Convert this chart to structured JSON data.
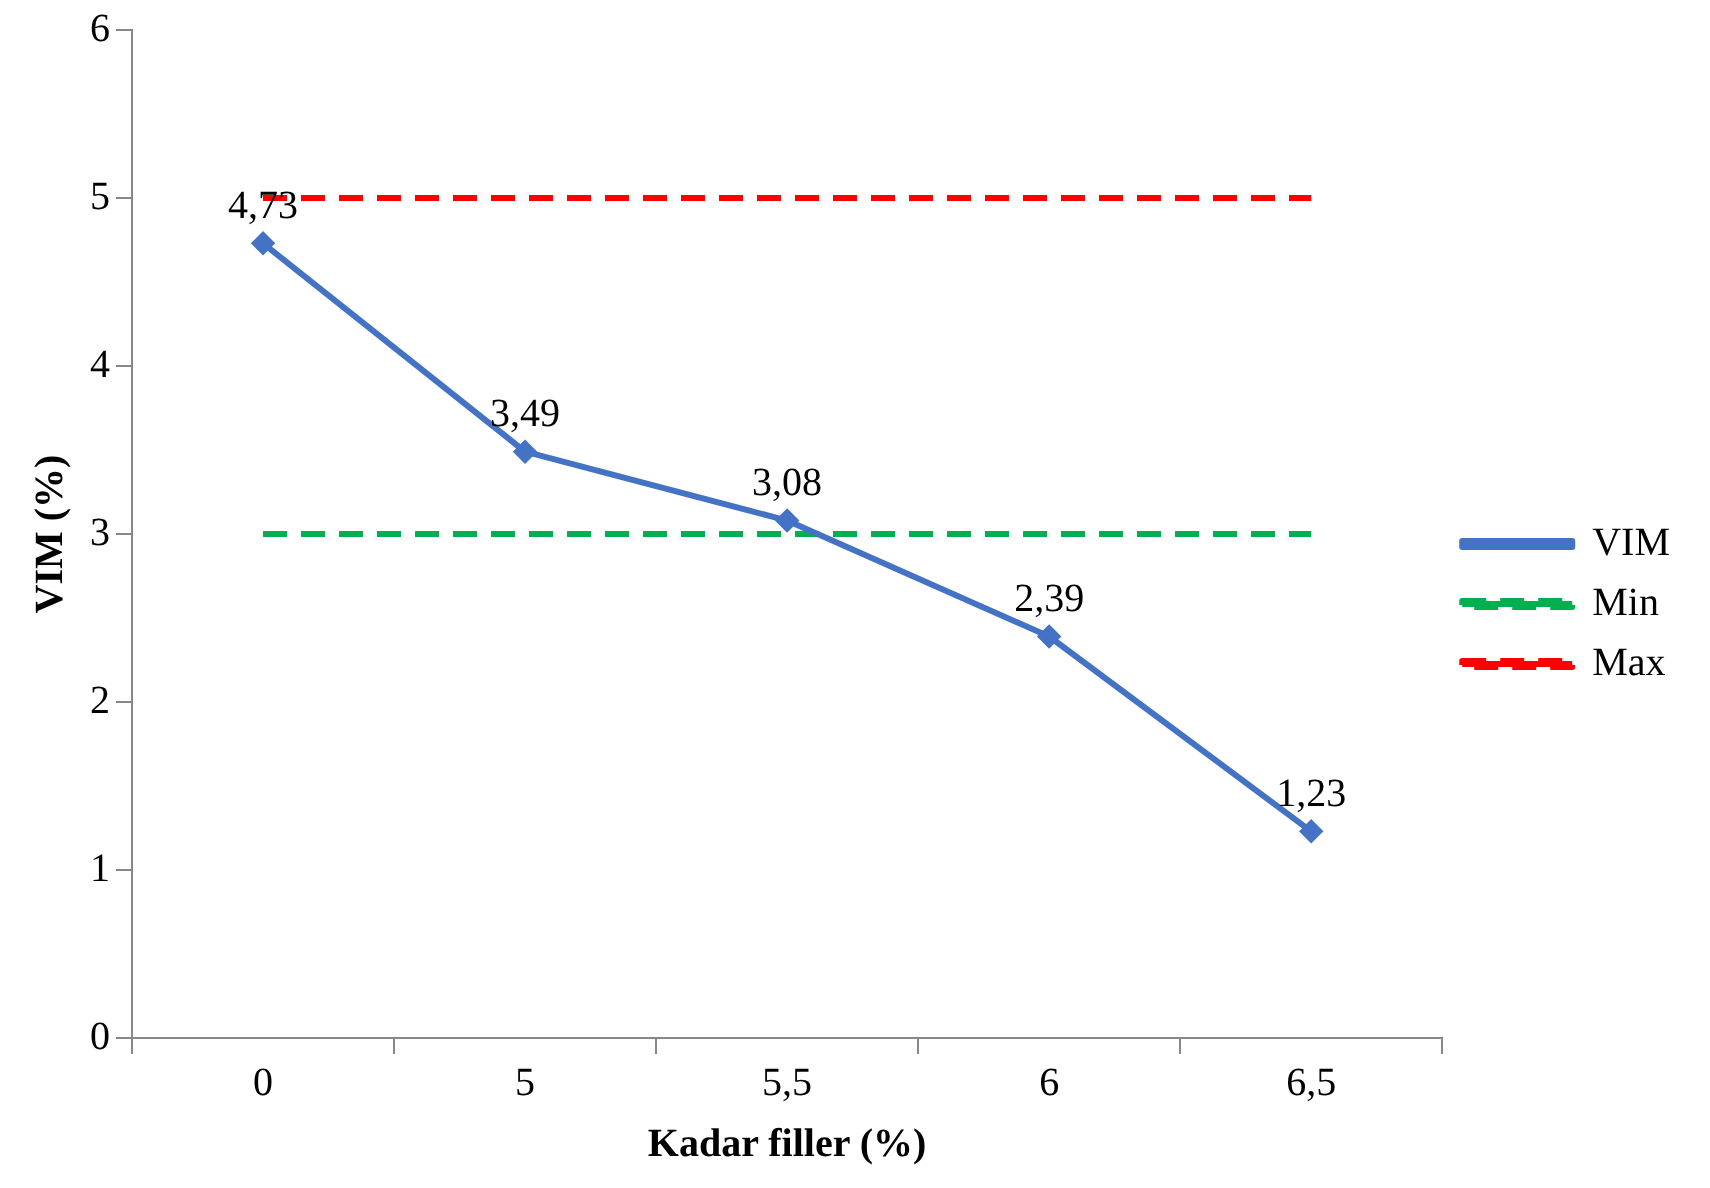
{
  "chart_data": {
    "type": "line",
    "xlabel": "Kadar filler (%)",
    "ylabel": "VIM (%)",
    "categories": [
      "0",
      "5",
      "5,5",
      "6",
      "6,5"
    ],
    "ylim": [
      0,
      6
    ],
    "yticks": [
      0,
      1,
      2,
      3,
      4,
      5,
      6
    ],
    "grid": false,
    "legend": "right",
    "series": [
      {
        "name": "VIM",
        "color": "#4472c4",
        "values": [
          4.73,
          3.49,
          3.08,
          2.39,
          1.23
        ],
        "value_labels": [
          "4,73",
          "3,49",
          "3,08",
          "2,39",
          "1,23"
        ],
        "marker": "diamond",
        "line_style": "solid"
      },
      {
        "name": "Min",
        "color": "#00b050",
        "values": [
          3,
          3,
          3,
          3,
          3
        ],
        "marker": "none",
        "line_style": "dashed"
      },
      {
        "name": "Max",
        "color": "#ff0000",
        "values": [
          5,
          5,
          5,
          5,
          5
        ],
        "marker": "none",
        "line_style": "dashed"
      }
    ]
  }
}
